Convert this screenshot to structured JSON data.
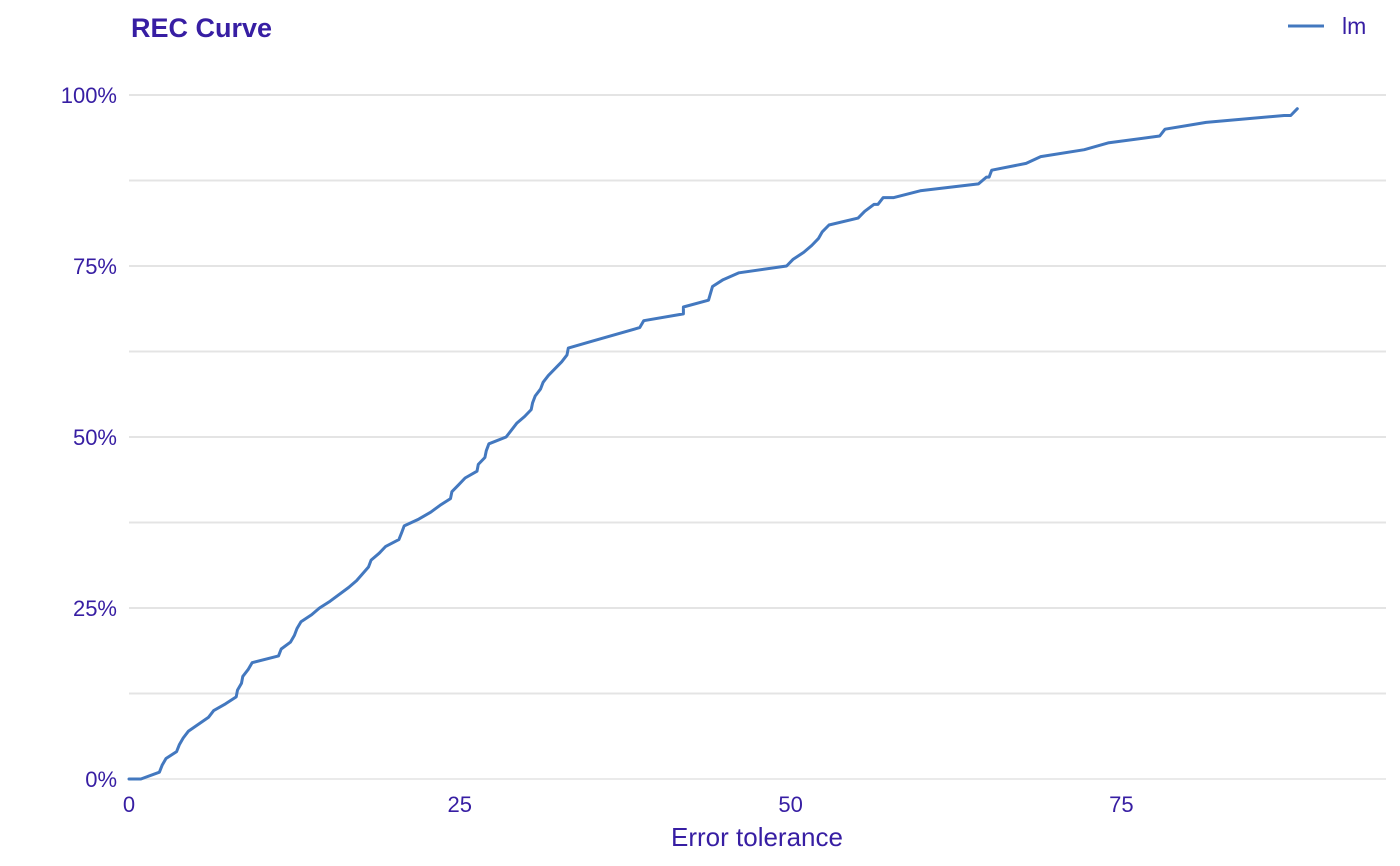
{
  "colors": {
    "text": "#371ea3",
    "grid": "#e4e4e4",
    "axis": "#e4e4e4",
    "series": "#4378bf"
  },
  "chart_data": {
    "type": "line",
    "title": "REC Curve",
    "xlabel": "Error tolerance",
    "ylabel": "",
    "xlim": [
      0,
      95
    ],
    "ylim": [
      0,
      1
    ],
    "x_ticks": [
      0,
      25,
      50,
      75
    ],
    "x_tick_labels": [
      "0",
      "25",
      "50",
      "75"
    ],
    "y_ticks": [
      0,
      0.25,
      0.5,
      0.75,
      1.0
    ],
    "y_tick_labels": [
      "0%",
      "25%",
      "50%",
      "75%",
      "100%"
    ],
    "y_minor_gridlines": [
      0.125,
      0.375,
      0.625,
      0.875
    ],
    "grid": true,
    "legend_position": "top-right",
    "series": [
      {
        "name": "lm",
        "x": [
          0,
          0.9,
          2.3,
          2.5,
          2.8,
          3.6,
          3.8,
          4.1,
          4.5,
          6.0,
          6.4,
          7.3,
          8.1,
          8.2,
          8.5,
          8.6,
          9.0,
          9.3,
          11.3,
          11.5,
          12.2,
          12.5,
          12.7,
          13.0,
          13.8,
          14.4,
          15.2,
          16.6,
          17.2,
          18.1,
          18.3,
          18.9,
          19.4,
          20.4,
          20.6,
          20.8,
          21.9,
          22.8,
          23.5,
          24.3,
          24.4,
          24.9,
          25.4,
          26.3,
          26.4,
          26.9,
          27.0,
          27.2,
          28.5,
          28.9,
          29.3,
          29.9,
          30.4,
          30.5,
          30.7,
          31.1,
          31.3,
          31.7,
          32.2,
          32.7,
          33.1,
          33.2,
          35.0,
          38.6,
          38.9,
          41.9,
          41.9,
          43.8,
          44.1,
          44.9,
          46.1,
          49.7,
          50.2,
          51.0,
          51.6,
          52.1,
          52.4,
          52.9,
          55.1,
          55.6,
          56.3,
          56.6,
          57.0,
          57.8,
          59.8,
          64.2,
          64.8,
          65.0,
          65.2,
          67.8,
          68.9,
          72.2,
          74.0,
          77.9,
          78.3,
          81.4,
          87.3,
          87.8,
          88.3
        ],
        "y": [
          0,
          0,
          0.01,
          0.02,
          0.03,
          0.04,
          0.05,
          0.06,
          0.07,
          0.09,
          0.1,
          0.11,
          0.12,
          0.13,
          0.14,
          0.15,
          0.16,
          0.17,
          0.18,
          0.19,
          0.2,
          0.21,
          0.22,
          0.23,
          0.24,
          0.25,
          0.26,
          0.28,
          0.29,
          0.31,
          0.32,
          0.33,
          0.34,
          0.35,
          0.36,
          0.37,
          0.38,
          0.39,
          0.4,
          0.41,
          0.42,
          0.43,
          0.44,
          0.45,
          0.46,
          0.47,
          0.48,
          0.49,
          0.5,
          0.51,
          0.52,
          0.53,
          0.54,
          0.55,
          0.56,
          0.57,
          0.58,
          0.59,
          0.6,
          0.61,
          0.62,
          0.63,
          0.64,
          0.66,
          0.67,
          0.68,
          0.69,
          0.7,
          0.72,
          0.73,
          0.74,
          0.75,
          0.76,
          0.77,
          0.78,
          0.79,
          0.8,
          0.81,
          0.82,
          0.83,
          0.84,
          0.84,
          0.85,
          0.85,
          0.86,
          0.87,
          0.88,
          0.88,
          0.89,
          0.9,
          0.91,
          0.92,
          0.93,
          0.94,
          0.95,
          0.96,
          0.97,
          0.97,
          0.98
        ]
      }
    ]
  }
}
